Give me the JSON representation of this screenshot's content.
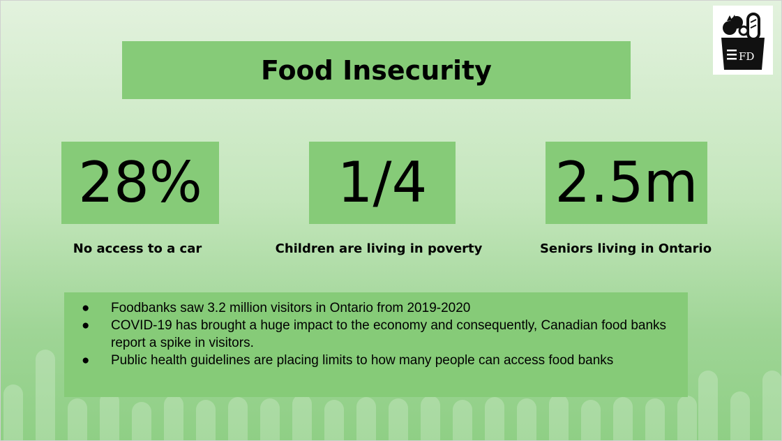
{
  "title": "Food Insecurity",
  "stats": [
    {
      "value": "28%",
      "label": "No access to a car"
    },
    {
      "value": "1/4",
      "label": "Children are living in poverty"
    },
    {
      "value": "2.5m",
      "label": "Seniors living in Ontario"
    }
  ],
  "bullets": [
    "Foodbanks saw 3.2 million visitors in Ontario from 2019-2020",
    "COVID-19 has brought a huge impact to the economy and consequently, Canadian food banks report a spike in visitors.",
    "Public health guidelines are placing limits to how many people can access food banks"
  ],
  "logo": {
    "text": "FD",
    "icon": "grocery-bag-icon"
  },
  "colors": {
    "box": "#86cb78",
    "background_top": "#e3f2de",
    "background_bottom": "#8fcf85"
  }
}
